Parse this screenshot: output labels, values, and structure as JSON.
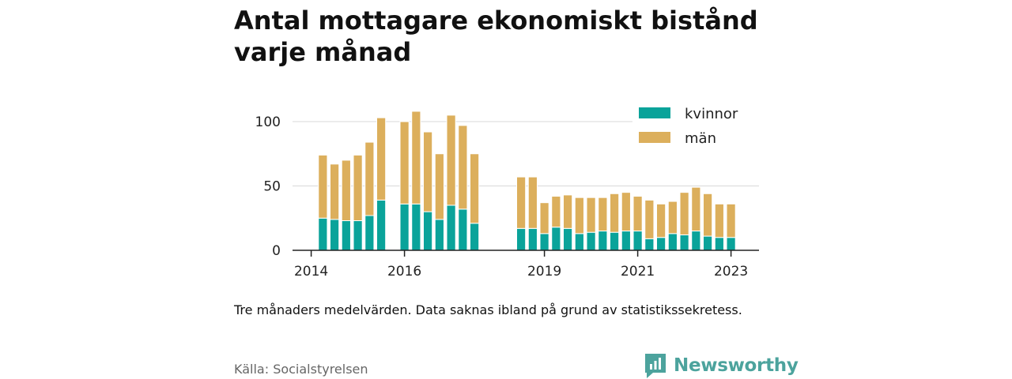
{
  "title": "Antal mottagare ekonomiskt bistånd varje månad",
  "note": "Tre månaders medelvärden. Data saknas ibland på grund av statistikssekretess.",
  "source": "Källa: Socialstyrelsen",
  "brand": {
    "name": "Newsworthy",
    "color": "#4ca39d"
  },
  "chart_data": {
    "type": "bar",
    "stacked": true,
    "x_unit": "year",
    "x": [
      2014.25,
      2014.5,
      2014.75,
      2015.0,
      2015.25,
      2015.5,
      2016.0,
      2016.25,
      2016.5,
      2016.75,
      2017.0,
      2017.25,
      2017.5,
      2018.5,
      2018.75,
      2019.0,
      2019.25,
      2019.5,
      2019.75,
      2020.0,
      2020.25,
      2020.5,
      2020.75,
      2021.0,
      2021.25,
      2021.5,
      2021.75,
      2022.0,
      2022.25,
      2022.5,
      2022.75,
      2023.0
    ],
    "series": [
      {
        "name": "kvinnor",
        "color": "#0aa39a",
        "values": [
          25,
          24,
          23,
          23,
          27,
          39,
          36,
          36,
          30,
          24,
          35,
          32,
          21,
          17,
          17,
          13,
          18,
          17,
          13,
          14,
          15,
          14,
          15,
          15,
          9,
          10,
          13,
          12,
          15,
          11,
          10,
          10
        ]
      },
      {
        "name": "män",
        "color": "#dcaf5c",
        "values": [
          49,
          43,
          47,
          51,
          57,
          64,
          64,
          72,
          62,
          51,
          70,
          65,
          54,
          40,
          40,
          24,
          24,
          26,
          28,
          27,
          26,
          30,
          30,
          27,
          30,
          26,
          25,
          33,
          34,
          33,
          26,
          26
        ]
      }
    ],
    "xticks": [
      {
        "value": 2014,
        "label": "2014"
      },
      {
        "value": 2016,
        "label": "2016"
      },
      {
        "value": 2019,
        "label": "2019"
      },
      {
        "value": 2021,
        "label": "2021"
      },
      {
        "value": 2023,
        "label": "2023"
      }
    ],
    "yticks": [
      {
        "value": 0,
        "label": "0"
      },
      {
        "value": 50,
        "label": "50"
      },
      {
        "value": 100,
        "label": "100"
      }
    ],
    "ylim": [
      0,
      100
    ],
    "xlim": [
      2013.6,
      2023.6
    ],
    "grid": true,
    "legend": "top-right",
    "xlabel": "",
    "ylabel": ""
  }
}
